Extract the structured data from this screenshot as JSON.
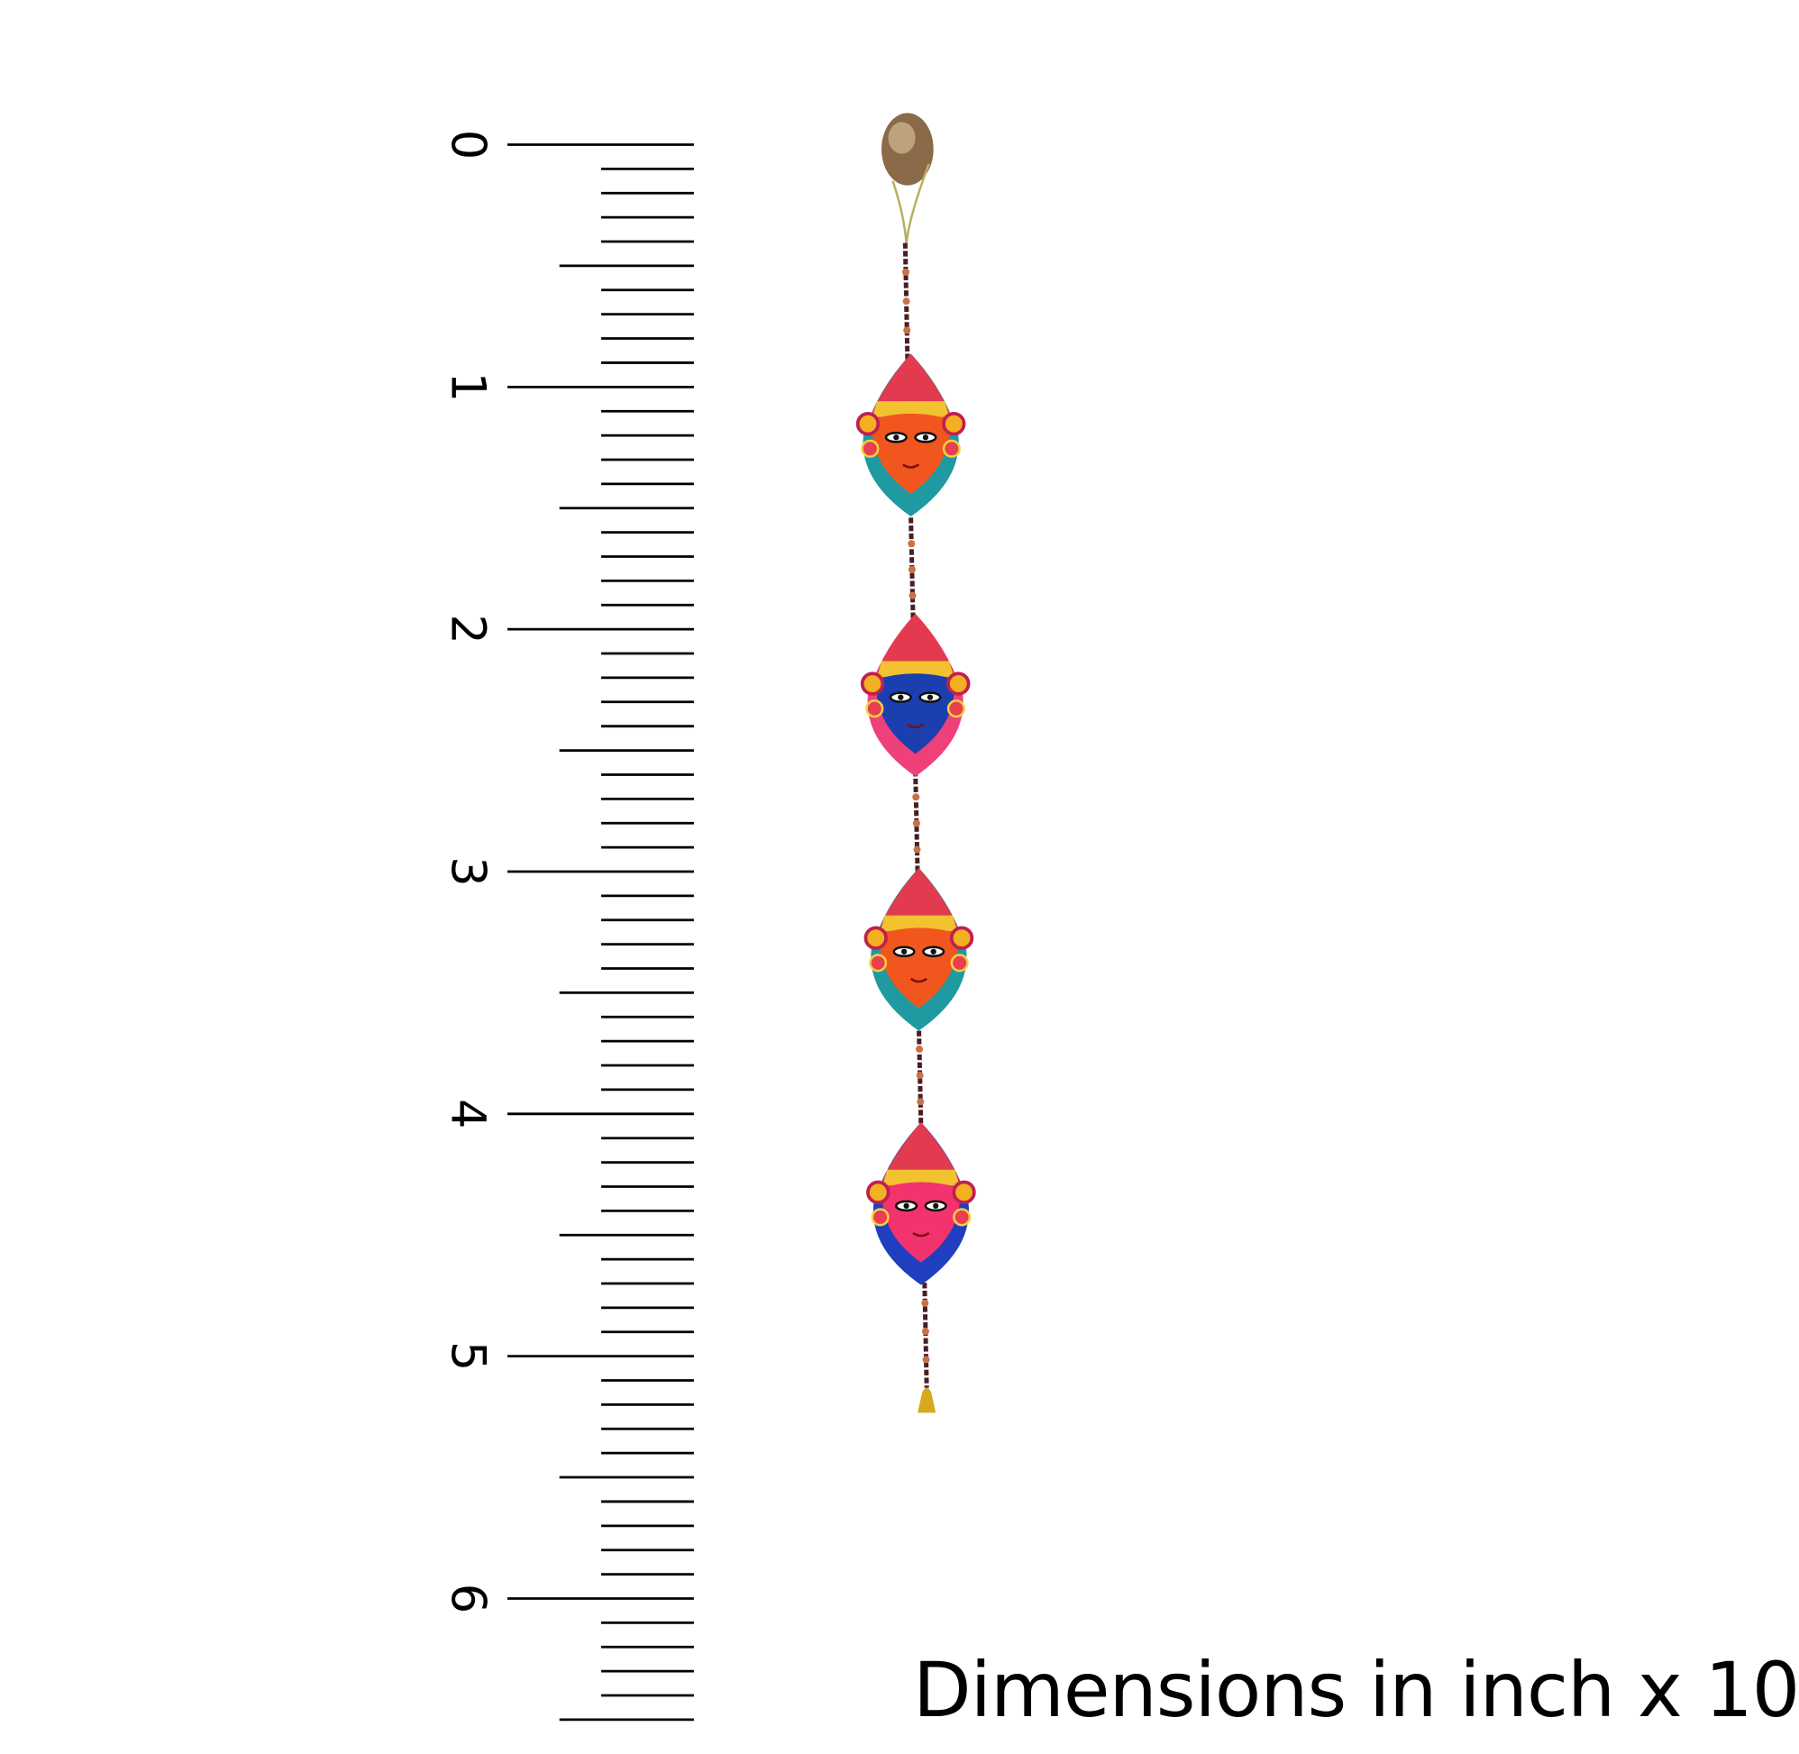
{
  "ruler": {
    "unit_labels": [
      "0",
      "1",
      "2",
      "3",
      "4",
      "5",
      "6"
    ],
    "range": [
      0,
      6.5
    ],
    "minor_divisions_per_unit": 10
  },
  "product": {
    "name": "hanging-mask-string",
    "mask_count": 4,
    "mask_colors": [
      {
        "face": "#f0561e",
        "chin": "#1f9aa0"
      },
      {
        "face": "#1c3fb0",
        "chin": "#f0407a"
      },
      {
        "face": "#f0561e",
        "chin": "#1f9aa0"
      },
      {
        "face": "#f2336e",
        "chin": "#1f3fc0"
      }
    ],
    "bead_color": "#4a1e24",
    "bell_color": "#d8a820"
  },
  "caption": "Dimensions in inch x 10"
}
